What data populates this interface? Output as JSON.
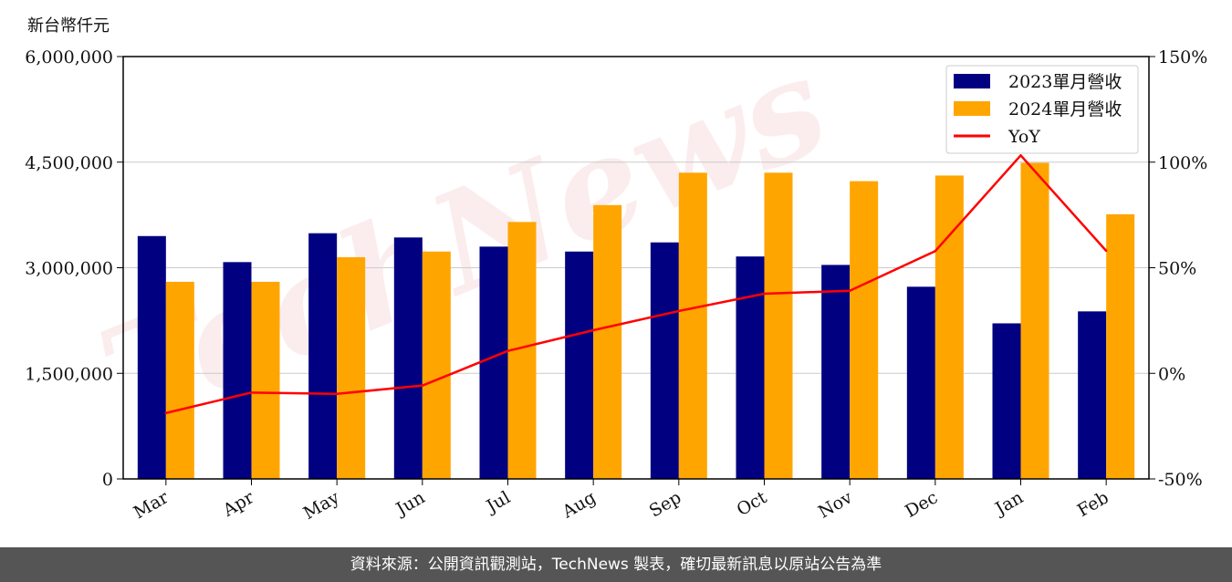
{
  "unit_label": "新台幣仟元",
  "footer_text": "資料來源：公開資訊觀測站，TechNews 製表，確切最新訊息以原站公告為準",
  "watermark_text": "TechNews",
  "colors": {
    "series_2023": "#000080",
    "series_2024": "#FFA500",
    "yoy_line": "#FF0000"
  },
  "chart_data": {
    "type": "bar",
    "categories": [
      "Mar",
      "Apr",
      "May",
      "Jun",
      "Jul",
      "Aug",
      "Sep",
      "Oct",
      "Nov",
      "Dec",
      "Jan",
      "Feb"
    ],
    "series": [
      {
        "name": "2023單月營收",
        "type": "bar",
        "axis": "left",
        "values": [
          3450000,
          3080000,
          3490000,
          3430000,
          3300000,
          3230000,
          3360000,
          3160000,
          3040000,
          2730000,
          2210000,
          2380000
        ]
      },
      {
        "name": "2024單月營收",
        "type": "bar",
        "axis": "left",
        "values": [
          2800000,
          2800000,
          3150000,
          3230000,
          3650000,
          3890000,
          4350000,
          4350000,
          4230000,
          4310000,
          4490000,
          3760000
        ]
      },
      {
        "name": "YoY",
        "type": "line",
        "axis": "right",
        "values": [
          -18.8,
          -9.1,
          -9.7,
          -5.8,
          10.6,
          20.4,
          29.5,
          37.7,
          39.1,
          57.9,
          103.2,
          58.0
        ]
      }
    ],
    "ylim": [
      0,
      6000000
    ],
    "y_ticks": [
      0,
      1500000,
      3000000,
      4500000,
      6000000
    ],
    "y_tick_labels": [
      "0",
      "1,500,000",
      "3,000,000",
      "4,500,000",
      "6,000,000"
    ],
    "y2lim": [
      -50,
      150
    ],
    "y2_ticks": [
      -50,
      0,
      50,
      100,
      150
    ],
    "y2_tick_labels": [
      "-50%",
      "0%",
      "50%",
      "100%",
      "150%"
    ],
    "grid": true,
    "legend_position": "top-right"
  }
}
